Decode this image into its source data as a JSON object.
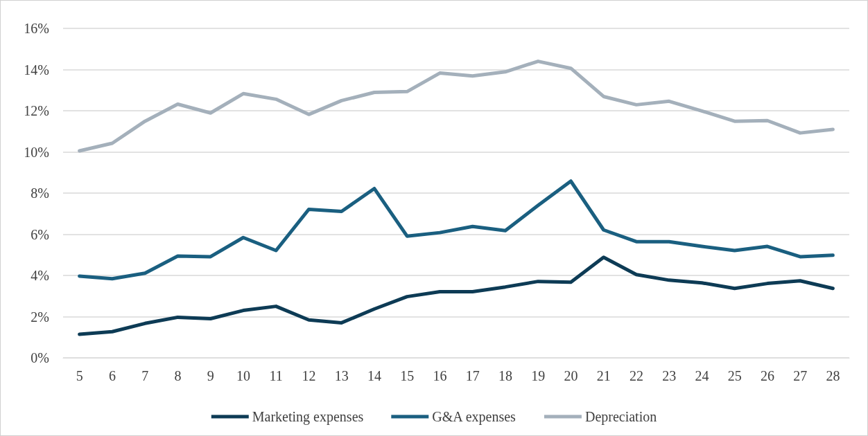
{
  "chart_data": {
    "type": "line",
    "categories": [
      "5",
      "6",
      "7",
      "8",
      "9",
      "10",
      "11",
      "12",
      "13",
      "14",
      "15",
      "16",
      "17",
      "18",
      "19",
      "20",
      "21",
      "22",
      "23",
      "24",
      "25",
      "26",
      "27",
      "28"
    ],
    "series": [
      {
        "name": "Marketing expenses",
        "color": "#0d3b55",
        "values": [
          1.14,
          1.27,
          1.67,
          1.97,
          1.9,
          2.3,
          2.5,
          1.84,
          1.7,
          2.37,
          2.97,
          3.21,
          3.21,
          3.44,
          3.71,
          3.67,
          4.88,
          4.04,
          3.77,
          3.64,
          3.37,
          3.61,
          3.74,
          3.37
        ]
      },
      {
        "name": "G&A expenses",
        "color": "#1a5f80",
        "values": [
          3.97,
          3.84,
          4.11,
          4.94,
          4.91,
          5.84,
          5.21,
          7.21,
          7.11,
          8.22,
          5.91,
          6.08,
          6.38,
          6.18,
          7.4,
          8.58,
          6.21,
          5.64,
          5.64,
          5.41,
          5.21,
          5.41,
          4.91,
          4.98
        ]
      },
      {
        "name": "Depreciation",
        "color": "#a4b0bb",
        "values": [
          10.05,
          10.42,
          11.49,
          12.32,
          11.89,
          12.83,
          12.56,
          11.82,
          12.49,
          12.89,
          12.93,
          13.83,
          13.69,
          13.89,
          14.4,
          14.06,
          12.69,
          12.29,
          12.46,
          11.99,
          11.49,
          11.52,
          10.92,
          11.09
        ]
      }
    ],
    "ylim": [
      0,
      16
    ],
    "yticks": [
      {
        "value": 0,
        "label": "0%"
      },
      {
        "value": 2,
        "label": "2%"
      },
      {
        "value": 4,
        "label": "4%"
      },
      {
        "value": 6,
        "label": "6%"
      },
      {
        "value": 8,
        "label": "8%"
      },
      {
        "value": 10,
        "label": "10%"
      },
      {
        "value": 12,
        "label": "12%"
      },
      {
        "value": 14,
        "label": "14%"
      },
      {
        "value": 16,
        "label": "16%"
      }
    ],
    "grid": "y",
    "legend": "bottom",
    "marker": "none",
    "line_style": "solid"
  }
}
